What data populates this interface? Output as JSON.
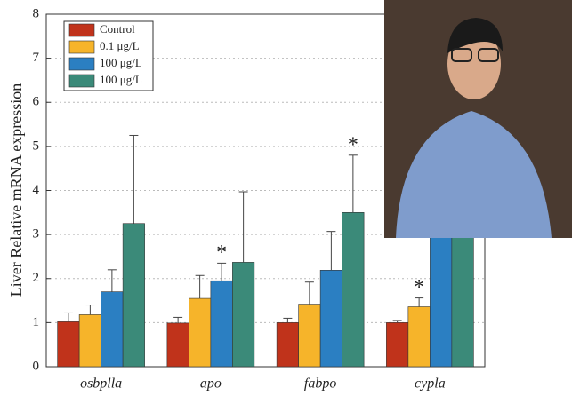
{
  "chart_data": {
    "type": "bar",
    "ylabel": "Liver Relative mRNA expression",
    "categories": [
      "osbplla",
      "apo",
      "fabpo",
      "cypla"
    ],
    "series": [
      {
        "name": "Control",
        "color": "#c0331b",
        "values": [
          1.02,
          0.99,
          1.0,
          1.0
        ],
        "errors": [
          0.2,
          0.13,
          0.1,
          0.05
        ]
      },
      {
        "name": "0.1 μg/L",
        "color": "#f6b42a",
        "values": [
          1.18,
          1.55,
          1.42,
          1.36
        ],
        "errors": [
          0.22,
          0.52,
          0.5,
          0.2
        ]
      },
      {
        "name": "100 μg/L",
        "color": "#2b7fc2",
        "values": [
          1.7,
          1.95,
          2.19,
          3.3
        ],
        "errors": [
          0.5,
          0.4,
          0.88,
          0.5
        ]
      },
      {
        "name": "100 μg/L",
        "color": "#3b8a79",
        "values": [
          3.25,
          2.37,
          3.5,
          3.4
        ],
        "errors": [
          2.0,
          1.6,
          1.3,
          0.5
        ]
      }
    ],
    "annotations": [
      {
        "text": "*",
        "series": 2,
        "category": 1
      },
      {
        "text": "*",
        "series": 3,
        "category": 2
      },
      {
        "text": "*",
        "series": 1,
        "category": 3
      }
    ],
    "ylim": [
      0,
      8
    ],
    "yticks": [
      0,
      1,
      2,
      3,
      4,
      5,
      6,
      7,
      8
    ],
    "grid": true,
    "legend": "upper left"
  }
}
